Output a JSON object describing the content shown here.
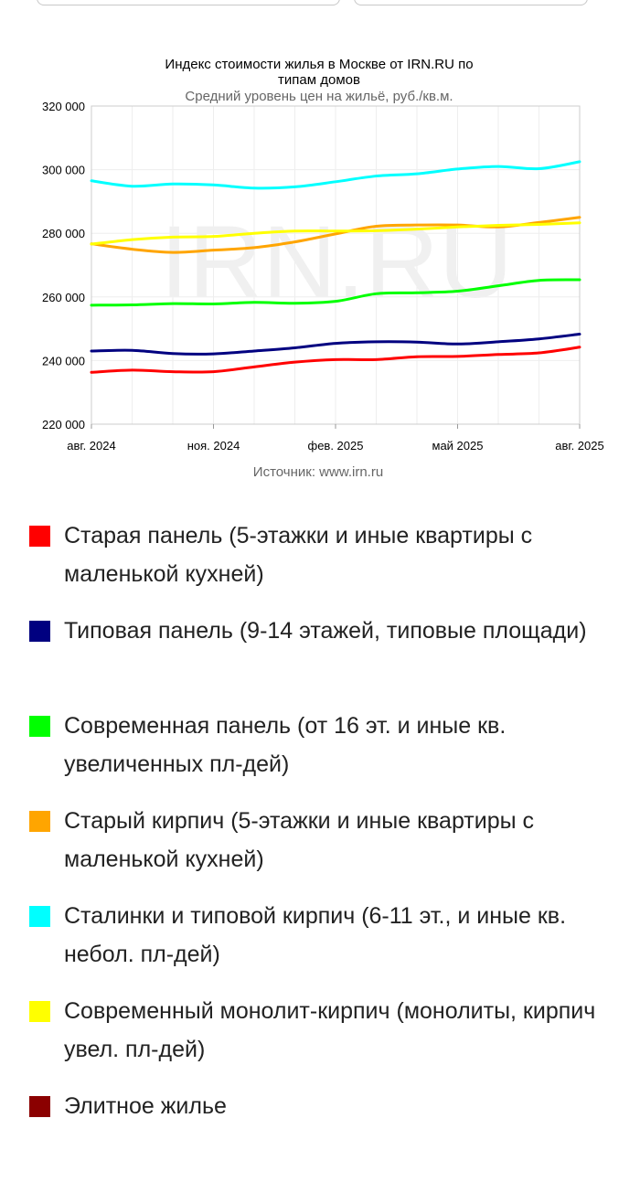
{
  "chart_data": {
    "type": "line",
    "title_lines": [
      "Индекс стоимости жилья в Москве от IRN.RU по",
      "типам домов"
    ],
    "subtitle": "Средний уровень цен на жильё, руб./кв.м.",
    "source": "Источник: www.irn.ru",
    "watermark": "IRN.RU",
    "x_ticks": [
      "авг. 2024",
      "ноя. 2024",
      "фев. 2025",
      "май 2025",
      "авг. 2025"
    ],
    "y_ticks": [
      "320 000",
      "300 000",
      "280 000",
      "260 000",
      "240 000",
      "220 000"
    ],
    "ylim": [
      220000,
      320000
    ],
    "grid": true,
    "legend_position": "bottom",
    "x_months": [
      "2024-08",
      "2024-09",
      "2024-10",
      "2024-11",
      "2024-12",
      "2025-01",
      "2025-02",
      "2025-03",
      "2025-04",
      "2025-05",
      "2025-06",
      "2025-07",
      "2025-08"
    ],
    "series": [
      {
        "name": "Старая панель (5-этажки и иные квартиры с маленькой кухней)",
        "color": "#ff0000",
        "values": [
          236300,
          237000,
          236500,
          236500,
          238000,
          239500,
          240300,
          240300,
          241200,
          241300,
          241900,
          242400,
          244200
        ]
      },
      {
        "name": "Типовая панель (9-14 этажей, типовые площади)",
        "color": "#000080",
        "values": [
          243000,
          243200,
          242200,
          242100,
          243000,
          244000,
          245400,
          245900,
          245800,
          245200,
          245900,
          246800,
          248300
        ]
      },
      {
        "name": "Современная панель (от 16 эт. и иные кв. увеличенных пл-дей)",
        "color": "#00ff00",
        "values": [
          257400,
          257500,
          257900,
          257800,
          258300,
          258000,
          258600,
          261000,
          261300,
          261800,
          263500,
          265200,
          265400
        ]
      },
      {
        "name": "Старый кирпич (5-этажки и иные квартиры с маленькой кухней)",
        "color": "#ffa500",
        "values": [
          276700,
          275000,
          274000,
          274700,
          275500,
          277300,
          279800,
          282200,
          282600,
          282600,
          282000,
          283400,
          285000
        ]
      },
      {
        "name": "Сталинки и типовой кирпич (6-11 эт., и иные кв. небол. пл-дей)",
        "color": "#00ffff",
        "values": [
          296500,
          294800,
          295500,
          295200,
          294200,
          294600,
          296200,
          298000,
          298700,
          300200,
          301000,
          300300,
          302500
        ]
      },
      {
        "name": "Современный монолит-кирпич (монолиты, кирпич увел. пл-дей)",
        "color": "#ffff00",
        "values": [
          276600,
          278000,
          278800,
          279000,
          280000,
          280700,
          280700,
          280800,
          281300,
          282000,
          282500,
          282800,
          283300
        ]
      },
      {
        "name": "Элитное жилье",
        "color": "#8b0000",
        "values": []
      }
    ]
  }
}
